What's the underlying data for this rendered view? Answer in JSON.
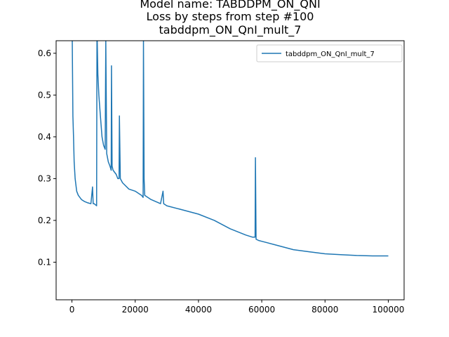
{
  "chart_data": {
    "type": "line",
    "title_lines": [
      "Model name: TABDDPM_ON_QNI",
      "Loss by steps from step #100",
      "tabddpm_ON_QnI_mult_7"
    ],
    "xlabel": "",
    "ylabel": "",
    "xlim": [
      -5000,
      105000
    ],
    "ylim": [
      0.01,
      0.63
    ],
    "x_ticks": [
      0,
      20000,
      40000,
      60000,
      80000,
      100000
    ],
    "x_tick_labels": [
      "0",
      "20000",
      "40000",
      "60000",
      "80000",
      "100000"
    ],
    "y_ticks": [
      0.1,
      0.2,
      0.3,
      0.4,
      0.5,
      0.6
    ],
    "y_tick_labels": [
      "0.1",
      "0.2",
      "0.3",
      "0.4",
      "0.5",
      "0.6"
    ],
    "grid": false,
    "legend_position": "upper right",
    "series": [
      {
        "name": "tabddpm_ON_QnI_mult_7",
        "color": "#1f77b4",
        "x": [
          100,
          200,
          300,
          500,
          700,
          1000,
          1500,
          2000,
          3000,
          4000,
          5000,
          6000,
          6500,
          6700,
          7000,
          7800,
          7900,
          8000,
          8200,
          8500,
          9000,
          9500,
          10000,
          10500,
          10700,
          11000,
          11500,
          12000,
          12400,
          12500,
          12700,
          13000,
          14000,
          14500,
          14900,
          15000,
          15300,
          16000,
          18000,
          20000,
          22000,
          22500,
          22600,
          22800,
          23000,
          25000,
          28000,
          28800,
          29000,
          30000,
          35000,
          40000,
          45000,
          50000,
          55000,
          57000,
          57900,
          58000,
          58200,
          59000,
          60000,
          65000,
          70000,
          75000,
          80000,
          85000,
          90000,
          95000,
          100000
        ],
        "y": [
          0.63,
          0.55,
          0.45,
          0.4,
          0.34,
          0.3,
          0.27,
          0.26,
          0.25,
          0.245,
          0.242,
          0.24,
          0.28,
          0.24,
          0.24,
          0.235,
          0.63,
          0.63,
          0.55,
          0.5,
          0.45,
          0.4,
          0.38,
          0.37,
          0.63,
          0.36,
          0.34,
          0.33,
          0.32,
          0.57,
          0.33,
          0.32,
          0.31,
          0.3,
          0.3,
          0.45,
          0.3,
          0.29,
          0.275,
          0.27,
          0.26,
          0.255,
          0.63,
          0.3,
          0.26,
          0.25,
          0.24,
          0.27,
          0.24,
          0.235,
          0.225,
          0.215,
          0.2,
          0.18,
          0.165,
          0.16,
          0.16,
          0.35,
          0.155,
          0.152,
          0.15,
          0.14,
          0.13,
          0.125,
          0.12,
          0.118,
          0.116,
          0.115,
          0.115
        ]
      }
    ]
  }
}
